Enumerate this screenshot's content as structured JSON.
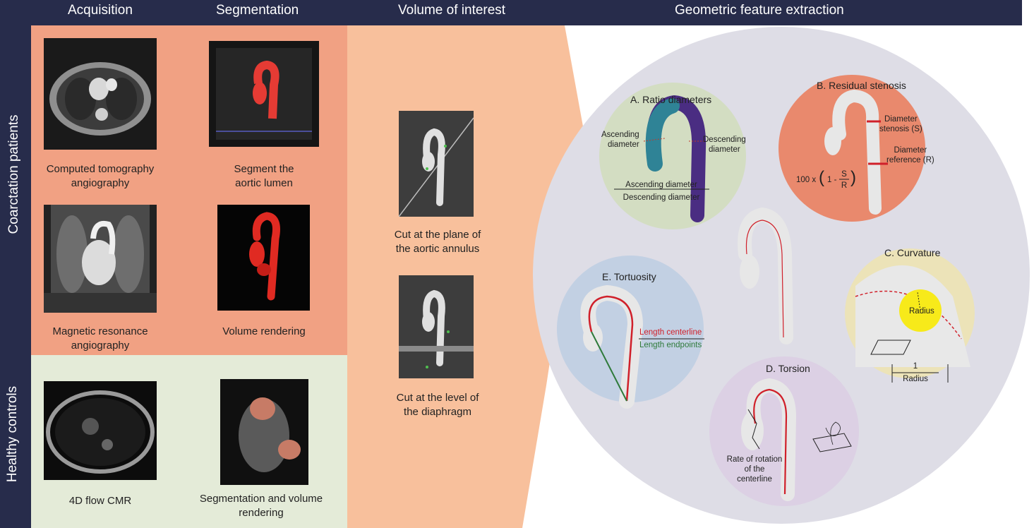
{
  "header": {
    "col_acquisition": "Acquisition",
    "col_segmentation": "Segmentation",
    "col_voi": "Volume of interest",
    "col_geometric": "Geometric feature extraction"
  },
  "rows": {
    "coarctation": "Coarctation patients",
    "healthy": "Healthy controls"
  },
  "acquisition": {
    "cta_line1": "Computed tomography",
    "cta_line2": "angiography",
    "mra_line1": "Magnetic resonance",
    "mra_line2": "angiography",
    "flow_label": "4D flow CMR"
  },
  "segmentation": {
    "seg_line1": "Segment the",
    "seg_line2": "aortic lumen",
    "vr_label": "Volume rendering",
    "segvr_line1": "Segmentation and volume",
    "segvr_line2": "rendering"
  },
  "voi": {
    "cut1_line1": "Cut at the plane of",
    "cut1_line2": "the aortic annulus",
    "cut2_line1": "Cut at the level of",
    "cut2_line2": "the diaphragm"
  },
  "features": {
    "ratio": {
      "title": "A. Ratio diameters",
      "asc_line1": "Ascending",
      "asc_line2": "diameter",
      "desc_line1": "Descending",
      "desc_line2": "diameter",
      "frac_num": "Ascending diameter",
      "frac_den": "Descending diameter"
    },
    "stenosis": {
      "title": "B. Residual stenosis",
      "diam_st_line1": "Diameter",
      "diam_st_line2": "stenosis (S)",
      "diam_ref_line1": "Diameter",
      "diam_ref_line2": "reference (R)",
      "formula_prefix": "100 x",
      "formula_one": "1 -",
      "formula_num": "S",
      "formula_den": "R"
    },
    "curvature": {
      "title": "C. Curvature",
      "radius": "Radius",
      "frac_num": "1",
      "frac_den": "Radius"
    },
    "torsion": {
      "title": "D. Torsion",
      "rate_line1": "Rate of rotation",
      "rate_line2": "of the",
      "rate_line3": "centerline"
    },
    "tortuosity": {
      "title": "E. Tortuosity",
      "len_center": "Length centerline",
      "len_end": "Length endpoints"
    }
  },
  "colors": {
    "header_bg": "#272c4b",
    "coarctation_bg": "#f1a183",
    "healthy_bg": "#e4ebd8",
    "voi_bg": "#f8c09c",
    "feature_bg": "#dedde6",
    "ratio_bg": "#d3ddc2",
    "stenosis_bg": "#e9896d",
    "curvature_bg": "#ece3b8",
    "torsion_bg": "#dcd0e4",
    "tortuosity_bg": "#c2d0e3",
    "centerline_red": "#d0202a",
    "endpoints_green": "#2e7a3a"
  }
}
